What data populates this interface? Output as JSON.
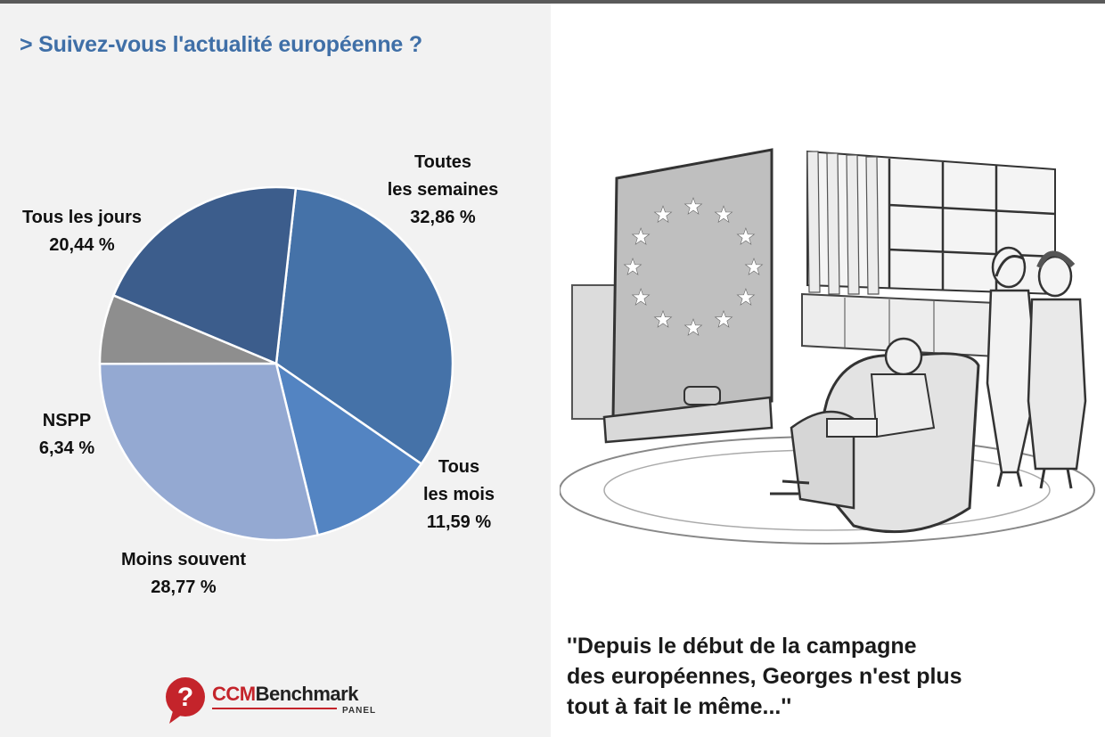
{
  "chart_data": {
    "type": "pie",
    "title": "> Suivez-vous l'actualité européenne ?",
    "slices": [
      {
        "label_lines": [
          "Toutes",
          "les semaines"
        ],
        "value": 32.86,
        "value_label": "32,86 %",
        "color": "#4572a8"
      },
      {
        "label_lines": [
          "Tous",
          "les mois"
        ],
        "value": 11.59,
        "value_label": "11,59 %",
        "color": "#5384c2"
      },
      {
        "label_lines": [
          "Moins souvent"
        ],
        "value": 28.77,
        "value_label": "28,77 %",
        "color": "#94a9d2"
      },
      {
        "label_lines": [
          "NSPP"
        ],
        "value": 6.34,
        "value_label": "6,34 %",
        "color": "#8e8e8e"
      },
      {
        "label_lines": [
          "Tous les jours"
        ],
        "value": 20.44,
        "value_label": "20,44 %",
        "color": "#3c5d8c"
      }
    ]
  },
  "logo": {
    "brand_ccm": "CCM",
    "brand_rest": "Benchmark",
    "sub": "PANEL"
  },
  "caption": {
    "line1": "''Depuis le début de la campagne",
    "line2": "des européennes, Georges n'est plus",
    "line3": "tout à fait le même...''"
  },
  "colors": {
    "title": "#3f6fa7",
    "logo_red": "#c4242b"
  }
}
